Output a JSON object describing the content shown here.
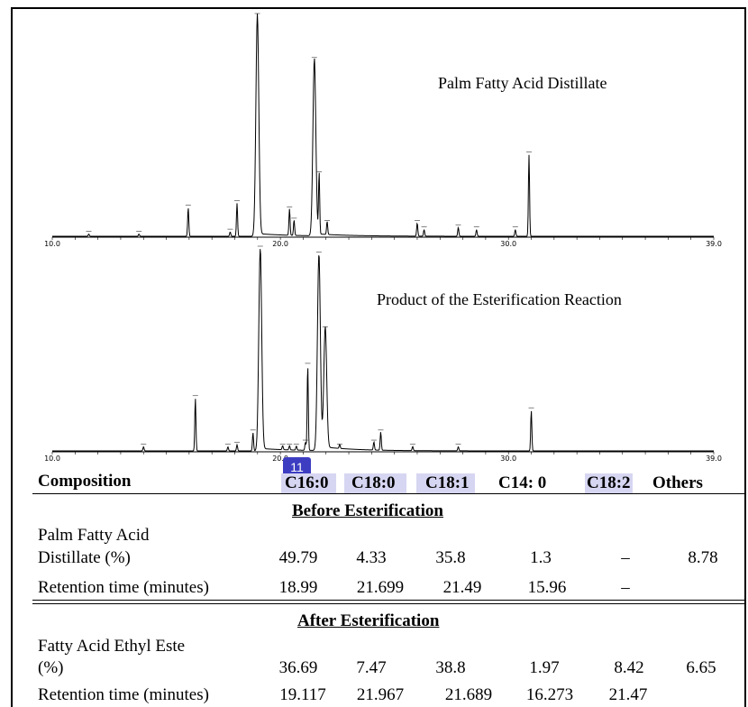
{
  "chart_data": [
    {
      "type": "line",
      "title": "Palm Fatty Acid Distillate",
      "xlim": [
        10.0,
        39.0
      ],
      "x_ticks": [
        "10.0",
        "20.0",
        "30.0",
        "39.0"
      ],
      "peaks": [
        {
          "x": 11.6,
          "h": 0.01
        },
        {
          "x": 13.8,
          "h": 0.01
        },
        {
          "x": 15.96,
          "h": 0.13
        },
        {
          "x": 17.8,
          "h": 0.02
        },
        {
          "x": 18.1,
          "h": 0.15
        },
        {
          "x": 18.99,
          "h": 1.0
        },
        {
          "x": 20.4,
          "h": 0.12
        },
        {
          "x": 20.6,
          "h": 0.07
        },
        {
          "x": 21.49,
          "h": 0.8
        },
        {
          "x": 21.699,
          "h": 0.28
        },
        {
          "x": 22.05,
          "h": 0.06
        },
        {
          "x": 26.0,
          "h": 0.06
        },
        {
          "x": 26.3,
          "h": 0.03
        },
        {
          "x": 27.8,
          "h": 0.04
        },
        {
          "x": 28.6,
          "h": 0.03
        },
        {
          "x": 30.3,
          "h": 0.03
        },
        {
          "x": 30.9,
          "h": 0.37
        }
      ]
    },
    {
      "type": "line",
      "title": "Product of the Esterification Reaction",
      "xlim": [
        10.0,
        39.0
      ],
      "x_ticks": [
        "10.0",
        "20.0",
        "30.0",
        "39.0"
      ],
      "peaks": [
        {
          "x": 14.0,
          "h": 0.02
        },
        {
          "x": 16.273,
          "h": 0.26
        },
        {
          "x": 17.7,
          "h": 0.02
        },
        {
          "x": 18.1,
          "h": 0.03
        },
        {
          "x": 18.8,
          "h": 0.09
        },
        {
          "x": 19.117,
          "h": 1.0
        },
        {
          "x": 20.1,
          "h": 0.02
        },
        {
          "x": 20.4,
          "h": 0.02
        },
        {
          "x": 20.7,
          "h": 0.02
        },
        {
          "x": 21.1,
          "h": 0.04
        },
        {
          "x": 21.2,
          "h": 0.42
        },
        {
          "x": 21.689,
          "h": 0.97
        },
        {
          "x": 21.967,
          "h": 0.6
        },
        {
          "x": 22.6,
          "h": 0.02
        },
        {
          "x": 24.1,
          "h": 0.04
        },
        {
          "x": 24.4,
          "h": 0.09
        },
        {
          "x": 25.8,
          "h": 0.02
        },
        {
          "x": 27.8,
          "h": 0.02
        },
        {
          "x": 31.0,
          "h": 0.2
        }
      ]
    }
  ],
  "badge": "11",
  "table": {
    "headers": [
      "Composition",
      "C16:0",
      "C18:0",
      "C18:1",
      "C14: 0",
      "C18:2",
      "Others"
    ],
    "before_title": "Before Esterification",
    "before_label_1": "Palm Fatty Acid",
    "before_label_2": "Distillate (%)",
    "before_pct": [
      "49.79",
      "4.33",
      "35.8",
      "1.3",
      "–",
      "8.78"
    ],
    "before_rt_label": "Retention time (minutes)",
    "before_rt": [
      "18.99",
      "21.699",
      "21.49",
      "15.96",
      "–"
    ],
    "after_title": "After Esterification",
    "after_label_1": "Fatty Acid Ethyl Este",
    "after_label_2": "(%)",
    "after_pct": [
      "36.69",
      "7.47",
      "38.8",
      "1.97",
      "8.42",
      "6.65"
    ],
    "after_rt_label": "Retention time (minutes)",
    "after_rt": [
      "19.117",
      "21.967",
      "21.689",
      "16.273",
      "21.47"
    ]
  }
}
